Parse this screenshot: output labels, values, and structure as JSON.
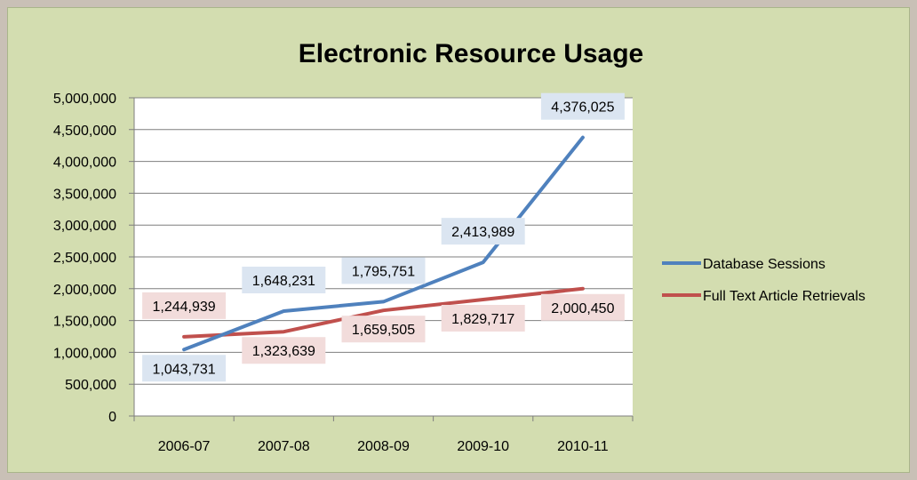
{
  "chart_data": {
    "type": "line",
    "title": "Electronic Resource Usage",
    "categories": [
      "2006-07",
      "2007-08",
      "2008-09",
      "2009-10",
      "2010-11"
    ],
    "ylim": [
      0,
      5000000
    ],
    "yticks": [
      0,
      500000,
      1000000,
      1500000,
      2000000,
      2500000,
      3000000,
      3500000,
      4000000,
      4500000,
      5000000
    ],
    "ytick_labels": [
      "0",
      "500,000",
      "1,000,000",
      "1,500,000",
      "2,000,000",
      "2,500,000",
      "3,000,000",
      "3,500,000",
      "4,000,000",
      "4,500,000",
      "5,000,000"
    ],
    "grid": true,
    "legend_position": "right",
    "series": [
      {
        "name": "Database Sessions",
        "color": "#4f81bd",
        "label_bg": "#dbe5f1",
        "values": [
          1043731,
          1648231,
          1795751,
          2413989,
          4376025
        ],
        "labels": [
          "1,043,731",
          "1,648,231",
          "1,795,751",
          "2,413,989",
          "4,376,025"
        ],
        "label_side": [
          "below",
          "above",
          "above",
          "above",
          "above"
        ]
      },
      {
        "name": "Full Text Article Retrievals",
        "color": "#c0504d",
        "label_bg": "#f2dcdb",
        "values": [
          1244939,
          1323639,
          1659505,
          1829717,
          2000450
        ],
        "labels": [
          "1,244,939",
          "1,323,639",
          "1,659,505",
          "1,829,717",
          "2,000,450"
        ],
        "label_side": [
          "above",
          "below",
          "below",
          "below",
          "below"
        ]
      }
    ]
  }
}
